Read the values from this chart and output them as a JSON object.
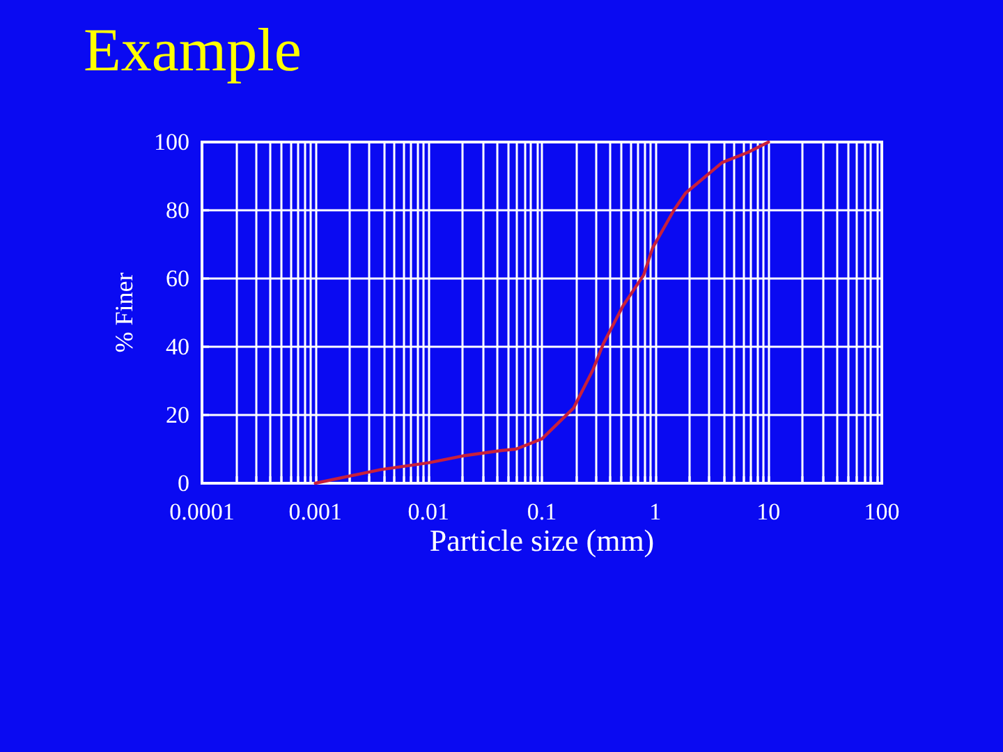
{
  "chart_data": {
    "type": "line",
    "title": "Example",
    "xlabel": "Particle size (mm)",
    "ylabel": "% Finer",
    "x": [
      0.001,
      0.0038,
      0.01,
      0.02,
      0.044,
      0.059,
      0.1,
      0.19,
      0.28,
      0.35,
      0.52,
      0.79,
      0.95,
      1.46,
      1.85,
      2.8,
      3.9,
      6.6,
      10
    ],
    "values": [
      0,
      4,
      6,
      8,
      9.6,
      10,
      13,
      22,
      33,
      41,
      52,
      61,
      69,
      80,
      85,
      90,
      94,
      97,
      100
    ],
    "color": "#c8203c",
    "log": "x",
    "xlim": [
      0.0001,
      100
    ],
    "xticks": [
      0.0001,
      {
        "value": 0.0002,
        "label": null
      },
      {
        "value": 0.0003,
        "label": null
      },
      {
        "value": 0.0004,
        "label": null
      },
      {
        "value": 0.0005,
        "label": null
      },
      {
        "value": 0.0006,
        "label": null
      },
      {
        "value": 0.0007,
        "label": null
      },
      {
        "value": 0.0008,
        "label": null
      },
      {
        "value": 0.0009,
        "label": null
      },
      0.001,
      {
        "value": 0.002,
        "label": null
      },
      {
        "value": 0.003,
        "label": null
      },
      {
        "value": 0.004,
        "label": null
      },
      {
        "value": 0.005,
        "label": null
      },
      {
        "value": 0.006,
        "label": null
      },
      {
        "value": 0.007,
        "label": null
      },
      {
        "value": 0.008,
        "label": null
      },
      {
        "value": 0.009,
        "label": null
      },
      0.01,
      {
        "value": 0.02,
        "label": null
      },
      {
        "value": 0.03,
        "label": null
      },
      {
        "value": 0.04,
        "label": null
      },
      {
        "value": 0.05,
        "label": null
      },
      {
        "value": 0.06,
        "label": null
      },
      {
        "value": 0.07,
        "label": null
      },
      {
        "value": 0.08,
        "label": null
      },
      {
        "value": 0.09,
        "label": null
      },
      0.1,
      {
        "value": 0.2,
        "label": null
      },
      {
        "value": 0.3,
        "label": null
      },
      {
        "value": 0.4,
        "label": null
      },
      {
        "value": 0.5,
        "label": null
      },
      {
        "value": 0.6,
        "label": null
      },
      {
        "value": 0.7,
        "label": null
      },
      {
        "value": 0.8,
        "label": null
      },
      {
        "value": 0.9,
        "label": null
      },
      1,
      {
        "value": 2,
        "label": null
      },
      {
        "value": 3,
        "label": null
      },
      {
        "value": 4,
        "label": null
      },
      {
        "value": 5,
        "label": null
      },
      {
        "value": 6,
        "label": null
      },
      {
        "value": 7,
        "label": null
      },
      {
        "value": 8,
        "label": null
      },
      {
        "value": 9,
        "label": null
      },
      10,
      {
        "value": 20,
        "label": null
      },
      {
        "value": 30,
        "label": null
      },
      {
        "value": 40,
        "label": null
      },
      {
        "value": 50,
        "label": null
      },
      {
        "value": 60,
        "label": null
      },
      {
        "value": 70,
        "label": null
      },
      {
        "value": 80,
        "label": null
      },
      {
        "value": 90,
        "label": null
      },
      100
    ],
    "ylim": [
      0,
      100
    ],
    "yticks": [
      0,
      20,
      40,
      60,
      80,
      100
    ],
    "grid": true,
    "marker": "none",
    "line_style": "solid"
  }
}
